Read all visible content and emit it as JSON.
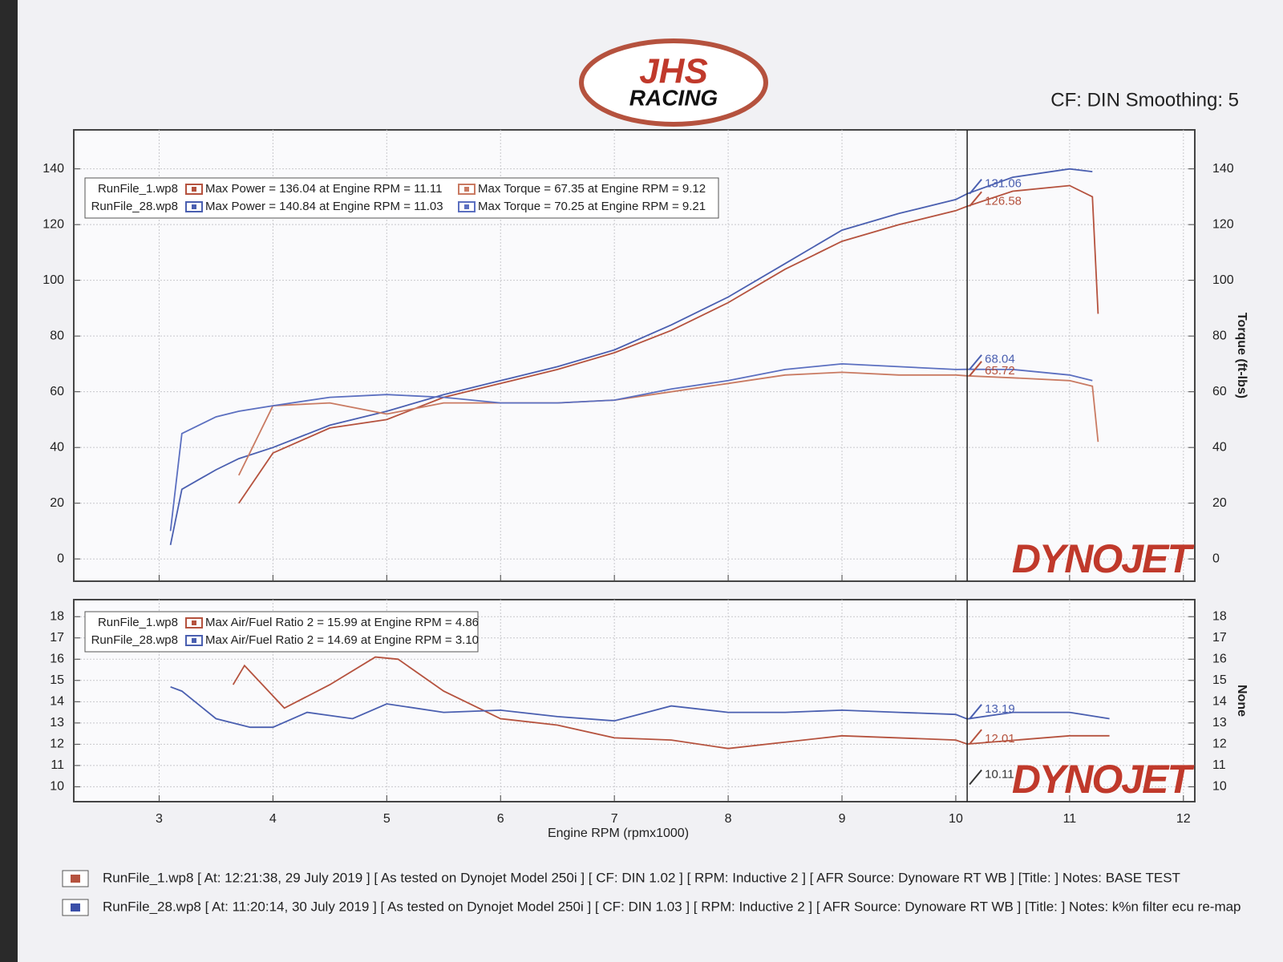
{
  "header": {
    "logo_top": "JHS",
    "logo_bottom": "RACING",
    "settings": "CF: DIN Smoothing: 5"
  },
  "chart_data": [
    {
      "type": "line",
      "xlim": [
        2.25,
        12.1
      ],
      "ylim": [
        -8,
        154
      ],
      "y2lim": [
        -8,
        154
      ],
      "xticks": [
        3,
        4,
        5,
        6,
        7,
        8,
        9,
        10,
        11,
        12
      ],
      "xtick_labels": false,
      "yticks": [
        0,
        20,
        40,
        60,
        80,
        100,
        120,
        140
      ],
      "y2ticks": [
        0,
        20,
        40,
        60,
        80,
        100,
        120,
        140
      ],
      "y2_label": "Torque (ft-lbs)",
      "grid": true,
      "watermark": "DYNOJET",
      "runs": [
        "RunFile_1.wp8",
        "RunFile_28.wp8"
      ],
      "series": [
        {
          "name": "Max Power = 136.04 at Engine RPM = 11.11",
          "color": "#b5523e",
          "x": [
            3.7,
            4,
            4.5,
            5,
            5.5,
            6,
            6.5,
            7,
            7.5,
            8,
            8.5,
            9,
            9.5,
            10,
            10.1,
            10.5,
            11,
            11.2,
            11.25
          ],
          "values": [
            20,
            38,
            47,
            50,
            58,
            63,
            68,
            74,
            82,
            92,
            104,
            114,
            120,
            125,
            126.58,
            132,
            134,
            130,
            88
          ]
        },
        {
          "name": "Max Power = 140.84 at Engine RPM = 11.03",
          "color": "#4a5fb0",
          "x": [
            3.1,
            3.2,
            3.5,
            3.7,
            4,
            4.5,
            5,
            5.5,
            6,
            6.5,
            7,
            7.5,
            8,
            8.5,
            9,
            9.5,
            10,
            10.1,
            10.5,
            11,
            11.2
          ],
          "values": [
            5,
            25,
            32,
            36,
            40,
            48,
            53,
            59,
            64,
            69,
            75,
            84,
            94,
            106,
            118,
            124,
            129,
            131.06,
            137,
            140,
            139
          ]
        },
        {
          "name": "Max Torque = 67.35 at Engine RPM = 9.12",
          "color": "#c97a62",
          "x": [
            3.7,
            4,
            4.5,
            5,
            5.5,
            6,
            6.5,
            7,
            7.5,
            8,
            8.5,
            9,
            9.5,
            10,
            10.1,
            10.5,
            11,
            11.2,
            11.25
          ],
          "values": [
            30,
            55,
            56,
            52,
            56,
            56,
            56,
            57,
            60,
            63,
            66,
            67,
            66,
            66,
            65.72,
            65,
            64,
            62,
            42
          ]
        },
        {
          "name": "Max Torque = 70.25 at Engine RPM = 9.21",
          "color": "#5b6fc0",
          "x": [
            3.1,
            3.2,
            3.5,
            3.7,
            4,
            4.5,
            5,
            5.5,
            6,
            6.5,
            7,
            7.5,
            8,
            8.5,
            9,
            9.5,
            10,
            10.1,
            10.5,
            11,
            11.2
          ],
          "values": [
            10,
            45,
            51,
            53,
            55,
            58,
            59,
            58,
            56,
            56,
            57,
            61,
            64,
            68,
            70,
            69,
            68,
            68.04,
            68,
            66,
            64
          ]
        }
      ],
      "cursor": {
        "x": 10.1,
        "labels": [
          {
            "value": 131.06,
            "color": "#4a5fb0"
          },
          {
            "value": 126.58,
            "color": "#b5523e"
          },
          {
            "value": 68.04,
            "color": "#4a5fb0"
          },
          {
            "value": 65.72,
            "color": "#b5523e"
          }
        ]
      }
    },
    {
      "type": "line",
      "xlim": [
        2.25,
        12.1
      ],
      "ylim": [
        9.3,
        18.8
      ],
      "y2lim": [
        9.3,
        18.8
      ],
      "xticks": [
        3,
        4,
        5,
        6,
        7,
        8,
        9,
        10,
        11,
        12
      ],
      "xtick_labels": true,
      "yticks": [
        10,
        11,
        12,
        13,
        14,
        15,
        16,
        17,
        18
      ],
      "y2ticks": [
        10,
        11,
        12,
        13,
        14,
        15,
        16,
        17,
        18
      ],
      "x_label": "Engine RPM (rpmx1000)",
      "y2_label": "None",
      "grid": true,
      "watermark": "DYNOJET",
      "runs": [
        "RunFile_1.wp8",
        "RunFile_28.wp8"
      ],
      "series": [
        {
          "name": "Max Air/Fuel Ratio 2 = 15.99 at Engine RPM = 4.86",
          "color": "#b5523e",
          "x": [
            3.65,
            3.75,
            4.1,
            4.5,
            4.9,
            5.1,
            5.5,
            6,
            6.5,
            7,
            7.5,
            8,
            9,
            10,
            10.1,
            11,
            11.35
          ],
          "values": [
            14.8,
            15.7,
            13.7,
            14.8,
            16.1,
            16,
            14.5,
            13.2,
            12.9,
            12.3,
            12.2,
            11.8,
            12.4,
            12.2,
            12.01,
            12.4,
            12.4
          ]
        },
        {
          "name": "Max Air/Fuel Ratio 2 = 14.69 at Engine RPM = 3.10",
          "color": "#4a5fb0",
          "x": [
            3.1,
            3.2,
            3.5,
            3.8,
            4,
            4.3,
            4.7,
            5,
            5.5,
            6,
            6.5,
            7,
            7.5,
            8,
            8.5,
            9,
            9.5,
            10,
            10.1,
            10.5,
            11,
            11.35
          ],
          "values": [
            14.7,
            14.5,
            13.2,
            12.8,
            12.8,
            13.5,
            13.2,
            13.9,
            13.5,
            13.6,
            13.3,
            13.1,
            13.8,
            13.5,
            13.5,
            13.6,
            13.5,
            13.4,
            13.19,
            13.5,
            13.5,
            13.2
          ]
        }
      ],
      "cursor": {
        "x": 10.1,
        "labels": [
          {
            "value": 13.19,
            "color": "#4a5fb0"
          },
          {
            "value": 12.01,
            "color": "#b5523e"
          },
          {
            "value": 10.11,
            "color": "#333333"
          }
        ]
      }
    }
  ],
  "footer": [
    {
      "color": "#b5523e",
      "text": "RunFile_1.wp8 [ At: 12:21:38, 29 July 2019 ] [ As tested on Dynojet Model 250i ] [ CF: DIN 1.02 ] [ RPM: Inductive 2 ] [ AFR Source: Dynoware RT WB ] [Title: ]  Notes: BASE TEST"
    },
    {
      "color": "#3a4fa8",
      "text": "RunFile_28.wp8 [ At: 11:20:14, 30 July 2019 ] [ As tested on Dynojet Model 250i ] [ CF: DIN 1.03 ] [ RPM: Inductive 2 ] [ AFR Source: Dynoware RT WB ] [Title: ]  Notes: k%n filter ecu re-map"
    }
  ]
}
